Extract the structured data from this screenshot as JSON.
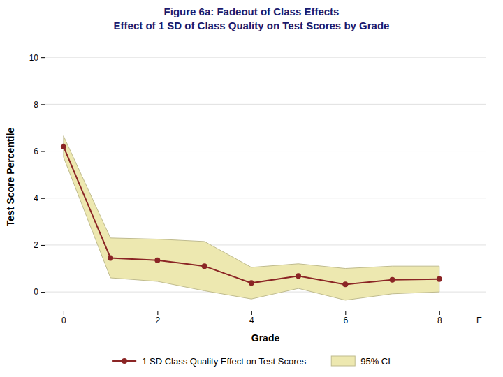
{
  "chart_data": {
    "type": "line",
    "title": "Figure 6a: Fadeout of Class Effects",
    "subtitle": "Effect of 1 SD of Class Quality on Test Scores by Grade",
    "title_color": "#1a1a6e",
    "x_label": "Grade",
    "y_label": "Test Score Percentile",
    "x": [
      0,
      1,
      2,
      3,
      4,
      5,
      6,
      7,
      8
    ],
    "series": [
      {
        "name": "1 SD Class Quality Effect on Test Scores",
        "type": "line",
        "color": "#8B2525",
        "marker": "circle",
        "values": [
          6.2,
          1.45,
          1.35,
          1.1,
          0.38,
          0.68,
          0.32,
          0.52,
          0.55
        ]
      },
      {
        "name": "95% CI",
        "type": "band",
        "color": "#EDE8B0",
        "upper": [
          6.65,
          2.3,
          2.25,
          2.15,
          1.05,
          1.2,
          1.0,
          1.1,
          1.1
        ],
        "lower": [
          5.75,
          0.6,
          0.45,
          0.05,
          -0.3,
          0.15,
          -0.35,
          -0.08,
          0.0
        ]
      }
    ],
    "xlim": [
      -0.4,
      9.0
    ],
    "ylim": [
      -0.8,
      10.6
    ],
    "xticks": [
      0,
      2,
      4,
      6,
      8
    ],
    "yticks": [
      0,
      2,
      4,
      6,
      8,
      10
    ],
    "annotations": [
      {
        "text": "E",
        "x": 8.85
      }
    ],
    "grid": true,
    "legend": "bottom"
  }
}
